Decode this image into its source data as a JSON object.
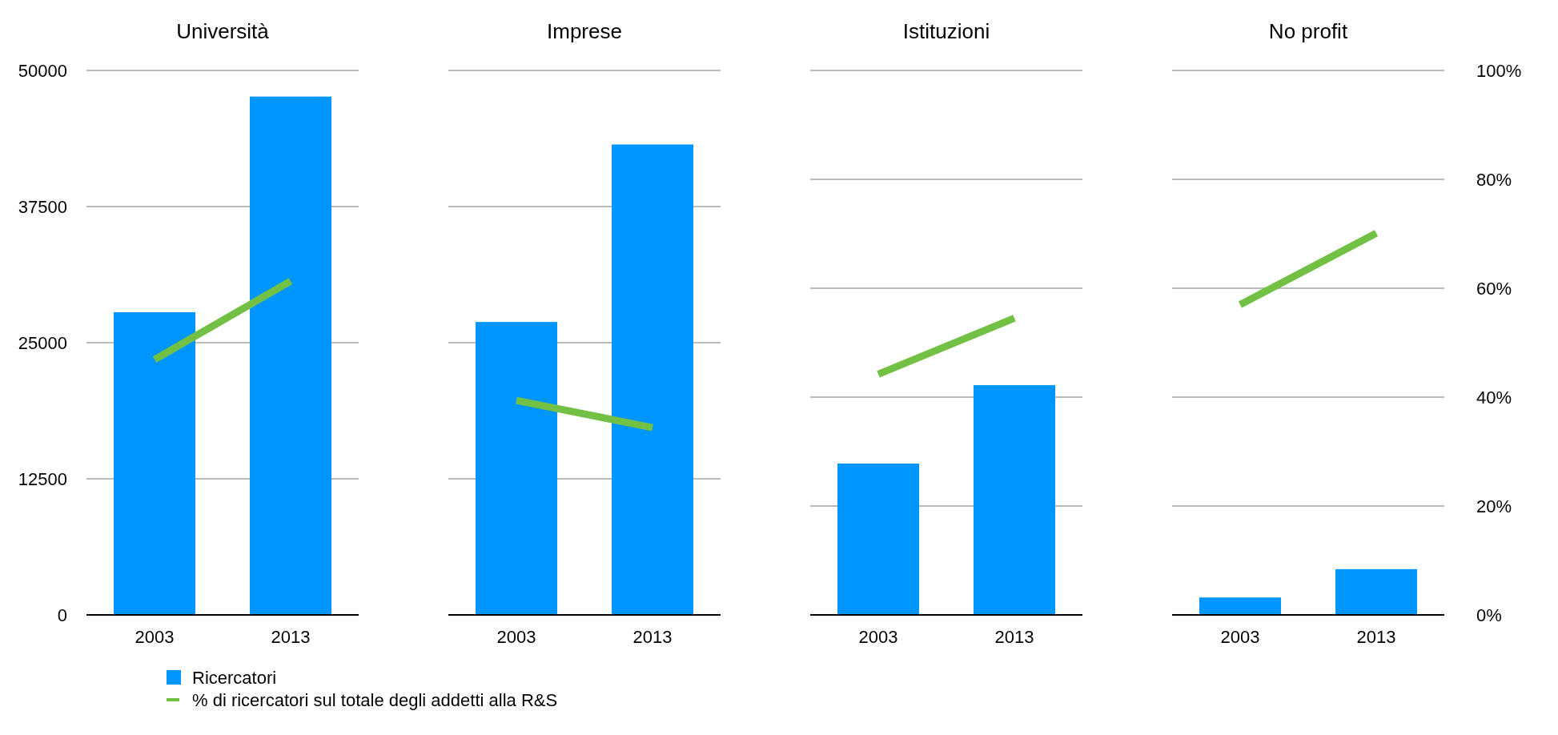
{
  "chart_data": [
    {
      "type": "bar",
      "title": "Università",
      "categories": [
        "2003",
        "2013"
      ],
      "ylim": [
        0,
        50000
      ],
      "yticks": [
        0,
        12500,
        25000,
        37500,
        50000
      ],
      "y2lim": [
        0,
        100
      ],
      "grid": true,
      "legend": "bottom",
      "series": [
        {
          "name": "Ricercatori",
          "color": "#0096ff",
          "values": [
            27800,
            47600
          ]
        },
        {
          "name": "% di ricercatori sul totale degli addetti alla R&S",
          "type": "line",
          "axis": "y2",
          "color": "#72c044",
          "values": [
            46.9,
            61.3
          ]
        }
      ]
    },
    {
      "type": "bar",
      "title": "Imprese",
      "categories": [
        "2003",
        "2013"
      ],
      "ylim": [
        0,
        50000
      ],
      "yticks": [
        0,
        12500,
        25000,
        37500,
        50000
      ],
      "y2lim": [
        0,
        100
      ],
      "grid": true,
      "tick_labels": "x",
      "series": [
        {
          "color": "#0096ff",
          "values": [
            26900,
            43200
          ]
        },
        {
          "type": "line",
          "axis": "y2",
          "color": "#72c044",
          "values": [
            39.4,
            34.4
          ]
        }
      ]
    },
    {
      "type": "bar",
      "title": "Istituzioni",
      "categories": [
        "2003",
        "2013"
      ],
      "ylim": [
        0,
        50000
      ],
      "y2lim": [
        0,
        100
      ],
      "y2ticks": [
        0,
        20,
        40,
        60,
        80,
        100
      ],
      "grid": true,
      "tick_labels": "x",
      "series": [
        {
          "color": "#0096ff",
          "values": [
            13900,
            21100
          ]
        },
        {
          "type": "line",
          "axis": "y2",
          "color": "#72c044",
          "values": [
            44.2,
            54.5
          ]
        }
      ]
    },
    {
      "type": "bar",
      "title": "No profit",
      "categories": [
        "2003",
        "2013"
      ],
      "ylim": [
        0,
        50000
      ],
      "y2lim": [
        0,
        100
      ],
      "y2ticks": [
        {
          "value": 0,
          "label": "0%"
        },
        {
          "value": 20,
          "label": "20%"
        },
        {
          "value": 40,
          "label": "40%"
        },
        {
          "value": 60,
          "label": "60%"
        },
        {
          "value": 80,
          "label": "80%"
        },
        {
          "value": 100,
          "label": "100%"
        }
      ],
      "grid": true,
      "series": [
        {
          "color": "#0096ff",
          "values": [
            1600,
            4200
          ]
        },
        {
          "type": "line",
          "axis": "y2",
          "color": "#72c044",
          "values": [
            57.0,
            70.1
          ]
        }
      ]
    }
  ]
}
